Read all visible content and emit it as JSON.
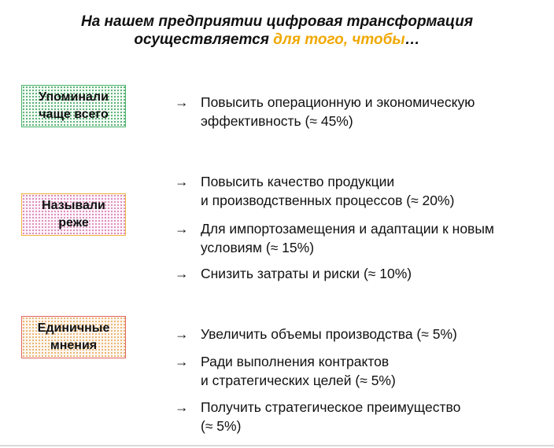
{
  "title": {
    "line1": "На нашем предприятии цифровая трансформация",
    "line2_prefix": "осуществляется ",
    "line2_accent": "для того, чтобы",
    "line2_suffix": "…"
  },
  "colors": {
    "accent": "#f0a800",
    "green_border": "#49b36a",
    "orange_border": "#f2b63e",
    "red_border": "#e26565"
  },
  "arrow_glyph": "→",
  "groups": [
    {
      "label_line1": "Упоминали",
      "label_line2": "чаще всего",
      "items": [
        {
          "line1": "Повысить операционную и экономическую",
          "line2": "эффективность (≈ 45%)"
        }
      ]
    },
    {
      "label_line1": "Называли",
      "label_line2": "реже",
      "items": [
        {
          "line1": "Повысить качество продукции",
          "line2": "и производственных процессов (≈ 20%)"
        },
        {
          "line1": "Для импортозамещения и адаптации к новым",
          "line2": "условиям (≈ 15%)"
        },
        {
          "line1": "Снизить затраты и риски (≈ 10%)",
          "line2": ""
        }
      ]
    },
    {
      "label_line1": "Единичные",
      "label_line2": "мнения",
      "items": [
        {
          "line1": "Увеличить объемы производства (≈ 5%)",
          "line2": ""
        },
        {
          "line1": "Ради выполнения контрактов",
          "line2": "и стратегических целей (≈ 5%)"
        },
        {
          "line1": "Получить стратегическое преимущество",
          "line2": "(≈ 5%)"
        }
      ]
    }
  ]
}
